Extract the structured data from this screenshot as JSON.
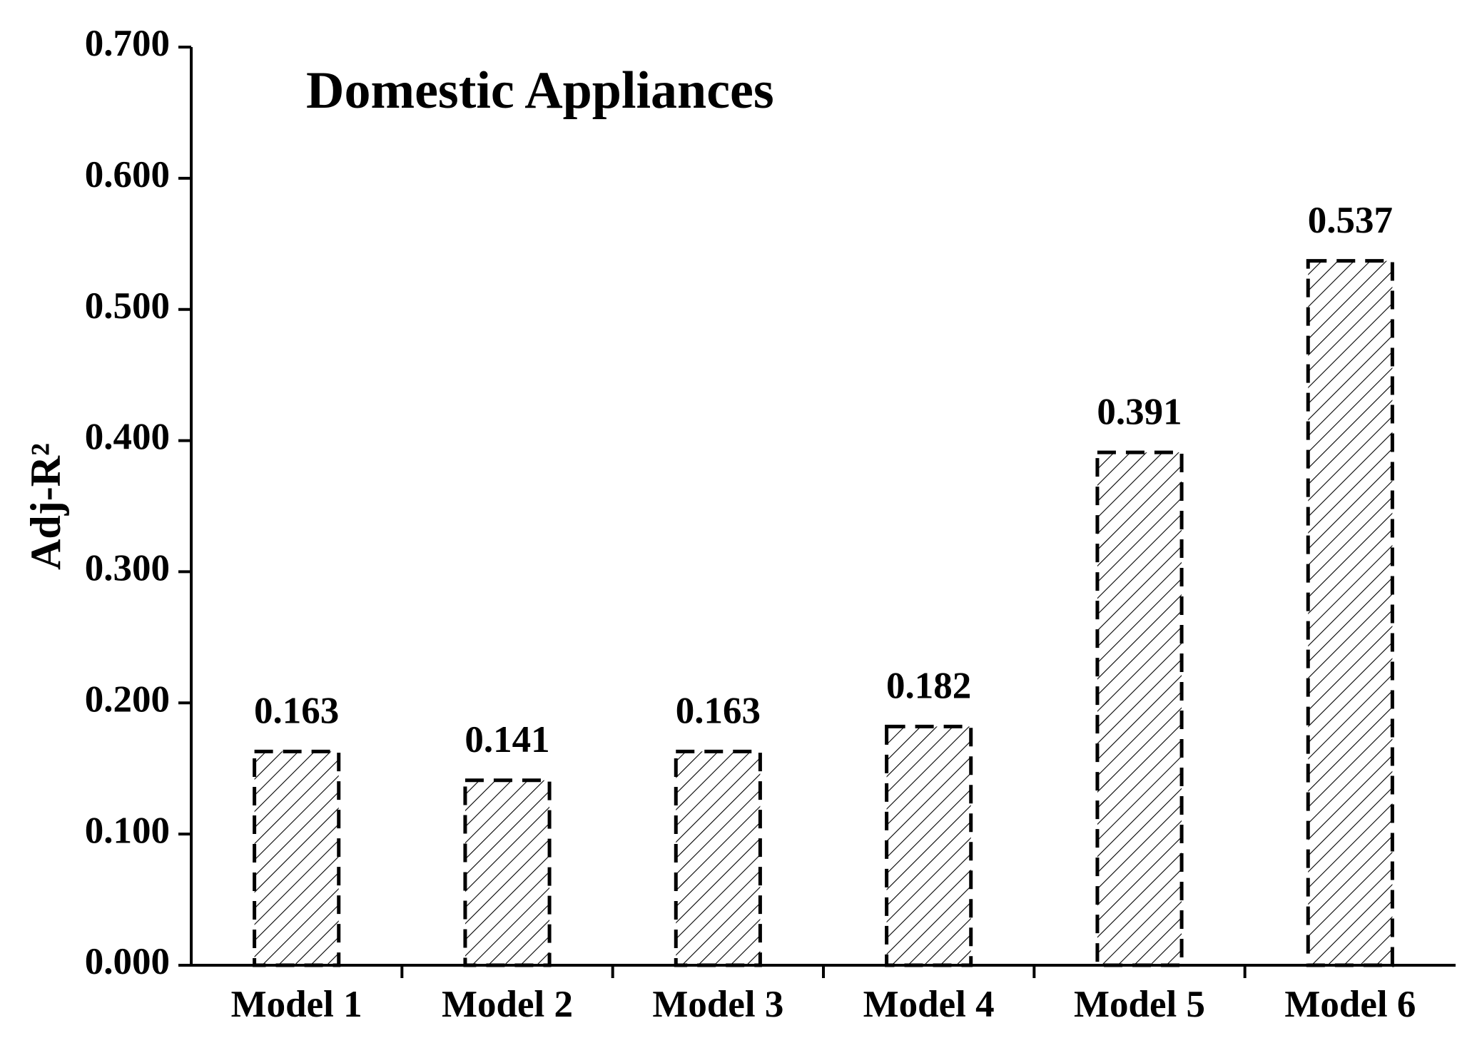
{
  "chart_data": {
    "type": "bar",
    "title": "Domestic Appliances",
    "y_label": "Adj-R²",
    "categories": [
      "Model 1",
      "Model 2",
      "Model 3",
      "Model 4",
      "Model 5",
      "Model 6"
    ],
    "values": [
      0.163,
      0.141,
      0.163,
      0.182,
      0.391,
      0.537
    ],
    "color": "#000000",
    "ylim": [
      0,
      0.7
    ],
    "yticks": [
      {
        "value": 0,
        "label": "0.000"
      },
      {
        "value": 0.1,
        "label": "0.100"
      },
      {
        "value": 0.2,
        "label": "0.200"
      },
      {
        "value": 0.3,
        "label": "0.300"
      },
      {
        "value": 0.4,
        "label": "0.400"
      },
      {
        "value": 0.5,
        "label": "0.500"
      },
      {
        "value": 0.6,
        "label": "0.600"
      },
      {
        "value": 0.7,
        "label": "0.700"
      }
    ],
    "grid": false
  }
}
